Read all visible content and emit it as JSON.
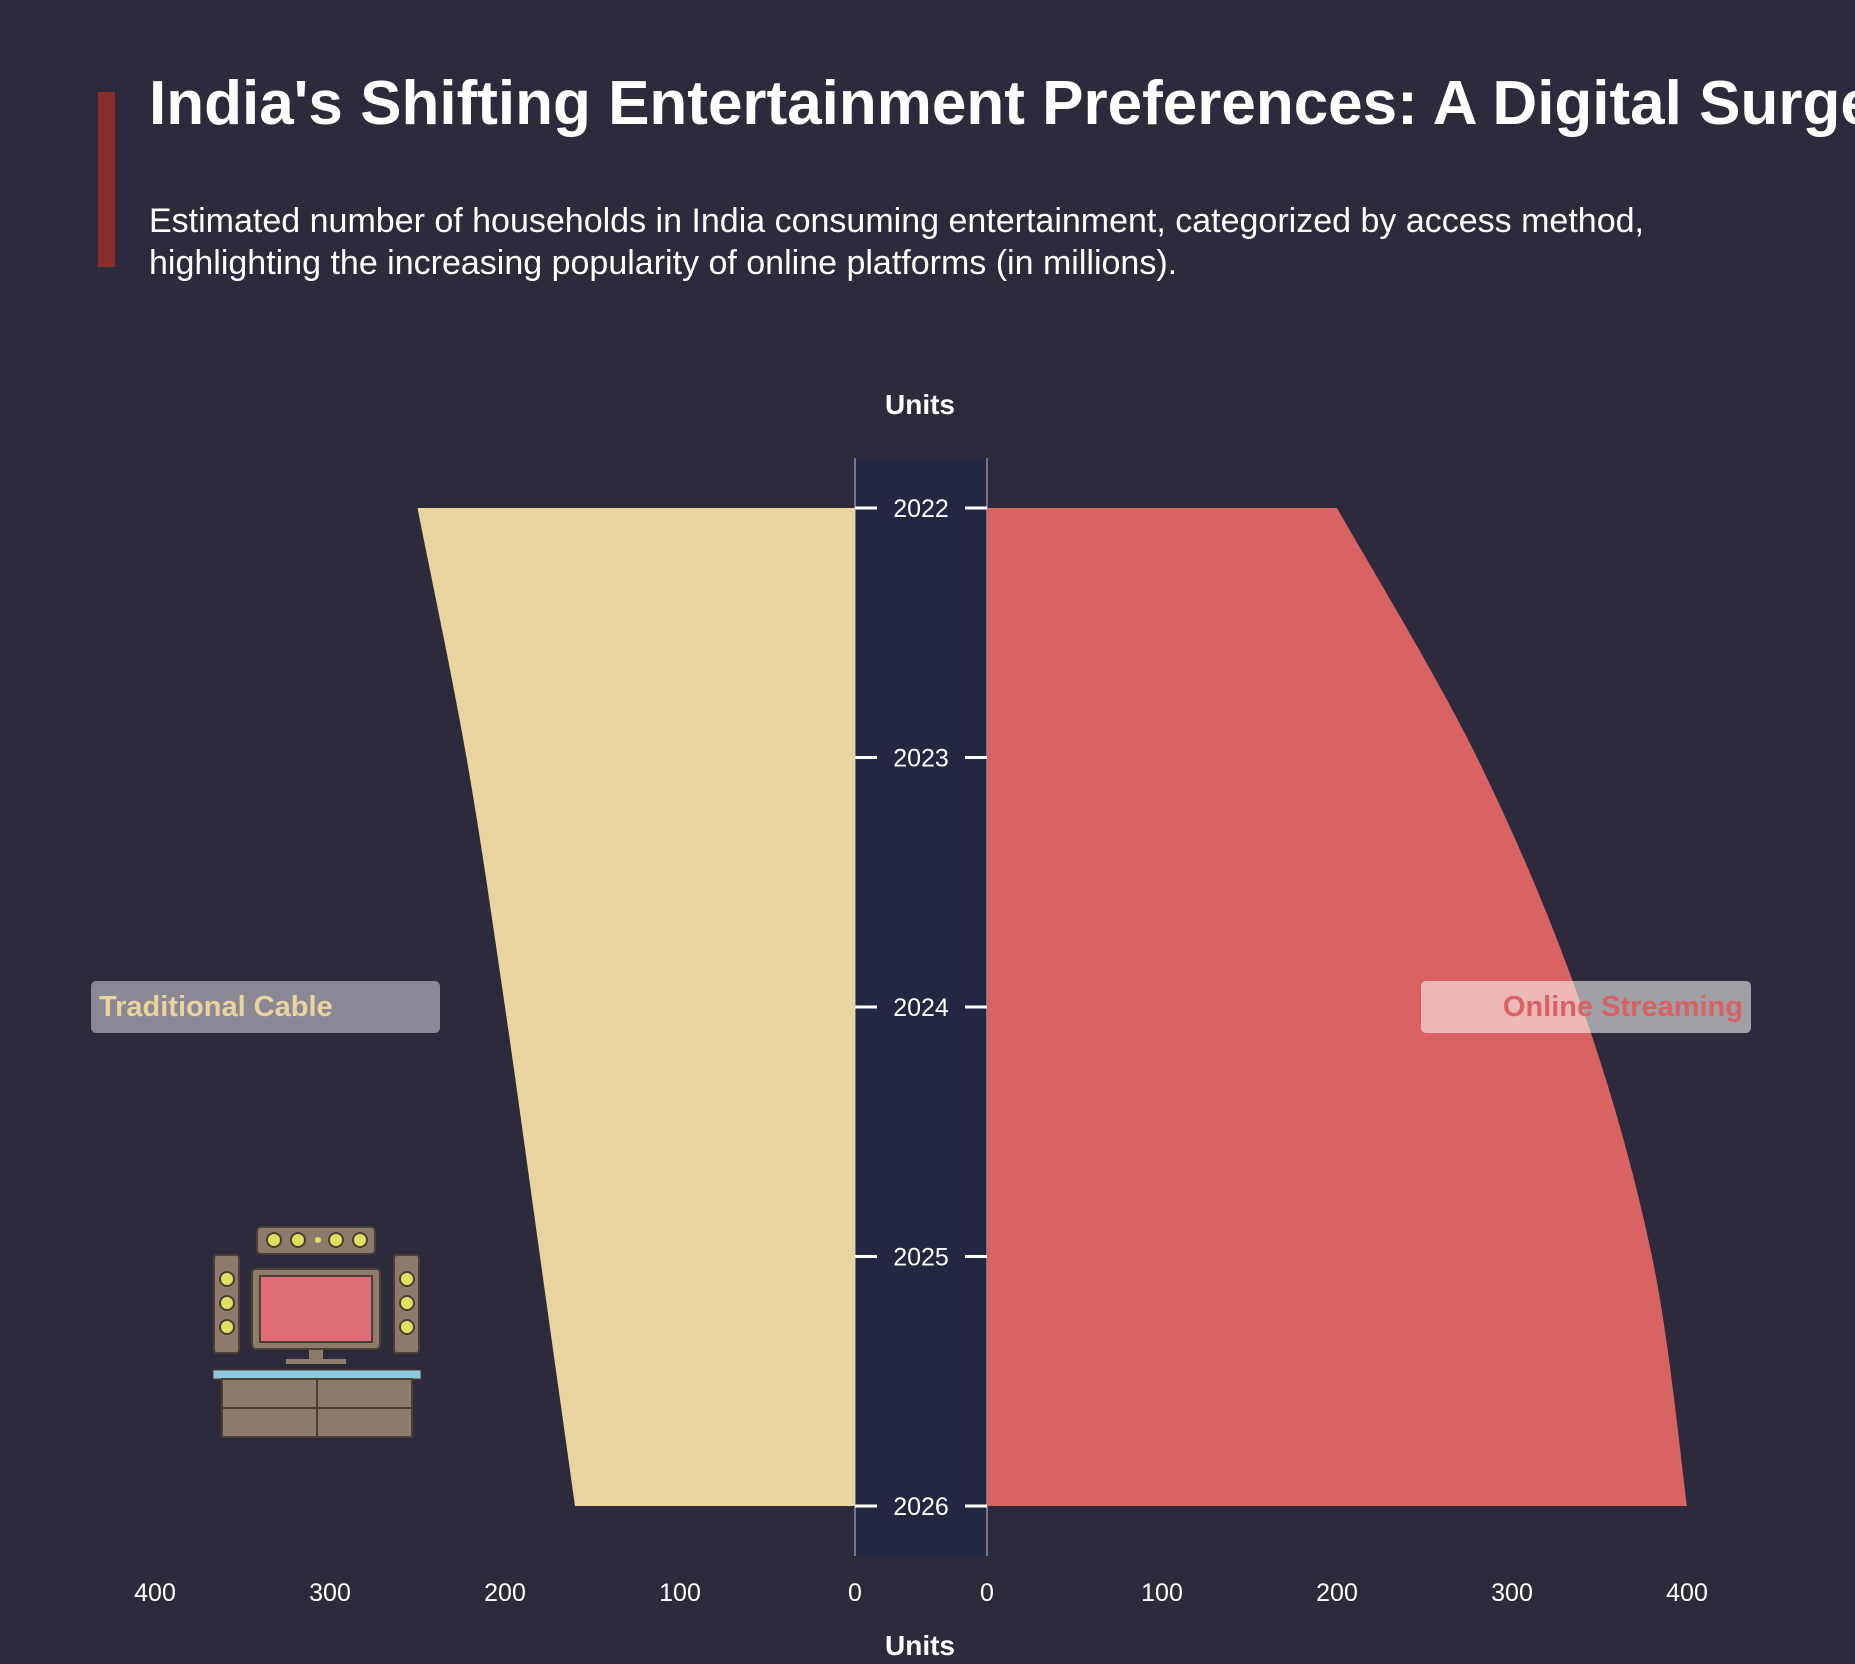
{
  "title": "India's Shifting Entertainment Preferences: A Digital Surge",
  "subtitle": "Estimated number of households in India consuming entertainment, categorized by access method, highlighting the increasing popularity of online platforms (in millions).",
  "colors": {
    "background": "#2d2b3b",
    "accent_bar": "#8b2c2c",
    "traditional_cable": "#e9d49f",
    "online_streaming": "#d96262",
    "center_band": "#232742"
  },
  "icons": [
    "home-theater-tv-icon"
  ],
  "chart_data": {
    "type": "area",
    "orientation": "mirrored-horizontal",
    "y_axis_label": "Units",
    "x_axis_label": "Units",
    "years": [
      "2022",
      "2023",
      "2024",
      "2025",
      "2026"
    ],
    "x_ticks": [
      400,
      300,
      200,
      100,
      0
    ],
    "xlim": [
      0,
      400
    ],
    "series": [
      {
        "name": "Traditional Cable",
        "side": "left",
        "values": [
          250,
          222,
          200,
          180,
          160
        ]
      },
      {
        "name": "Online Streaming",
        "side": "right",
        "values": [
          200,
          280,
          340,
          380,
          400
        ]
      }
    ],
    "grid": false
  }
}
